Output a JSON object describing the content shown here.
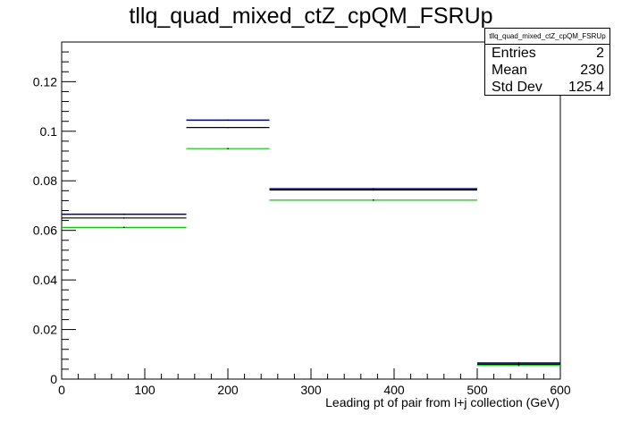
{
  "title": "tllq_quad_mixed_ctZ_cpQM_FSRUp",
  "stats_box": {
    "name": "tllq_quad_mixed_ctZ_cpQM_FSRUp",
    "rows": [
      {
        "label": "Entries",
        "value": "2"
      },
      {
        "label": "Mean",
        "value": "230"
      },
      {
        "label": "Std Dev",
        "value": "125.4"
      }
    ]
  },
  "chart_data": {
    "type": "histogram",
    "title": "tllq_quad_mixed_ctZ_cpQM_FSRUp",
    "xlabel": "Leading pt of pair from l+j collection (GeV)",
    "ylabel": "",
    "xlim": [
      0,
      600
    ],
    "ylim": [
      0,
      0.136
    ],
    "x_ticks": [
      0,
      100,
      200,
      300,
      400,
      500,
      600
    ],
    "y_ticks": [
      0,
      0.02,
      0.04,
      0.06,
      0.08,
      0.1,
      0.12
    ],
    "bin_edges": [
      0,
      150,
      250,
      500,
      600
    ],
    "series": [
      {
        "color": "#000080",
        "values": [
          0.0665,
          0.1045,
          0.0768,
          0.0065
        ]
      },
      {
        "color": "#000000",
        "values": [
          0.065,
          0.1015,
          0.0763,
          0.006
        ]
      },
      {
        "color": "#00cc00",
        "values": [
          0.0612,
          0.093,
          0.0722,
          0.0055
        ]
      }
    ]
  }
}
